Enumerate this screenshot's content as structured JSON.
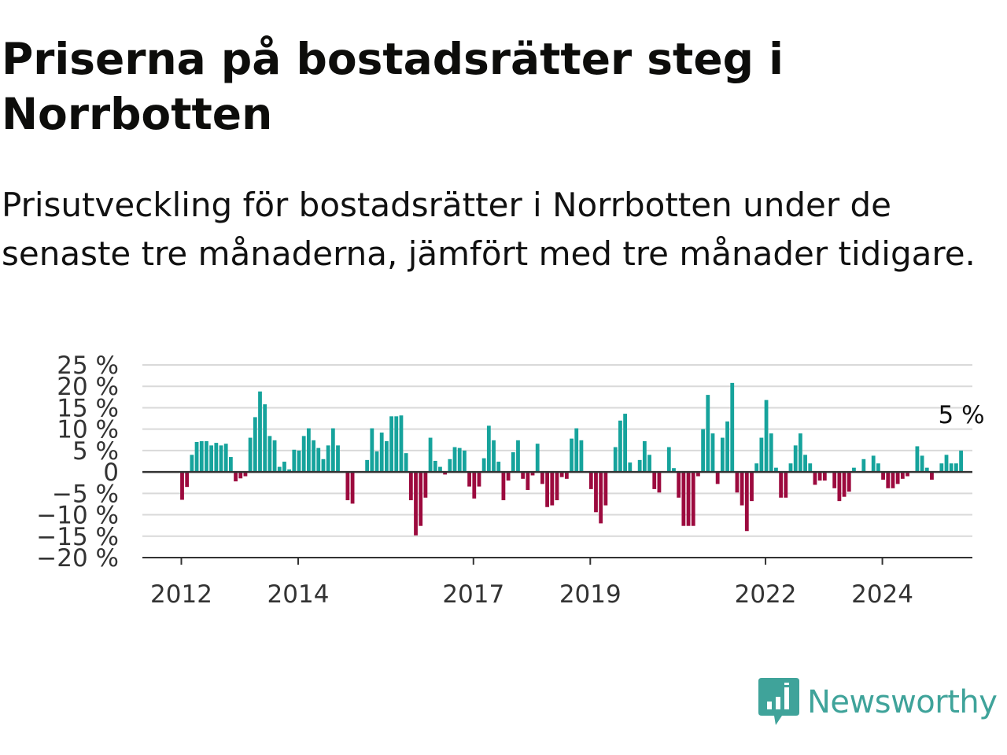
{
  "title": "Priserna på bostadsrätter steg i Norrbotten",
  "subtitle": "Prisutveckling för bostadsrätter i Norrbotten under de senaste tre månaderna, jämfört med tre månader tidigare.",
  "brand": "Newsworthy",
  "colors": {
    "positive": "#16a39c",
    "negative": "#9c0a3e",
    "grid": "#d9d9d9",
    "axis": "#333333",
    "brand": "#3fa39a"
  },
  "chart_data": {
    "type": "bar",
    "title": "Priserna på bostadsrätter steg i Norrbotten",
    "subtitle": "Prisutveckling för bostadsrätter i Norrbotten under de senaste tre månaderna, jämfört med tre månader tidigare.",
    "xlabel": "",
    "ylabel": "",
    "x_start": "2012-01",
    "frequency": "monthly",
    "ylim": [
      -20,
      25
    ],
    "y_ticks": [
      25,
      20,
      15,
      10,
      5,
      0,
      -5,
      -10,
      -15,
      -20
    ],
    "y_tick_labels": [
      "25 %",
      "20 %",
      "15 %",
      "10 %",
      "5 %",
      "0",
      "−5 %",
      "−10 %",
      "−15 %",
      "−20 %"
    ],
    "x_ticks": [
      "2012",
      "2014",
      "2017",
      "2019",
      "2022",
      "2024"
    ],
    "grid": true,
    "last_value_label": "5 %",
    "values": [
      -6.5,
      -3.5,
      4.0,
      7.0,
      7.2,
      7.2,
      6.2,
      6.8,
      6.2,
      6.6,
      3.5,
      -2.2,
      -1.5,
      -1.0,
      8.0,
      12.8,
      18.8,
      15.8,
      8.4,
      7.4,
      1.2,
      2.4,
      0.6,
      5.2,
      5.0,
      8.4,
      10.2,
      7.4,
      5.6,
      3.0,
      6.2,
      10.2,
      6.2,
      0.0,
      -6.6,
      -7.4,
      0.0,
      0.0,
      2.8,
      10.2,
      4.8,
      9.2,
      7.2,
      13.0,
      13.0,
      13.2,
      4.4,
      -6.6,
      -14.8,
      -12.6,
      -6.0,
      8.0,
      2.6,
      1.2,
      -0.6,
      3.0,
      5.8,
      5.6,
      5.0,
      -3.4,
      -6.2,
      -3.4,
      3.2,
      10.8,
      7.4,
      2.4,
      -6.6,
      -2.0,
      4.6,
      7.4,
      -1.6,
      -4.2,
      -0.8,
      6.6,
      -2.8,
      -8.2,
      -7.8,
      -6.6,
      -1.2,
      -1.6,
      7.8,
      10.2,
      7.4,
      0.0,
      -4.0,
      -9.4,
      -12.0,
      -7.8,
      0.0,
      5.8,
      12.0,
      13.6,
      2.2,
      0.0,
      2.8,
      7.2,
      4.0,
      -4.0,
      -4.8,
      0.0,
      5.8,
      0.9,
      -6.0,
      -12.6,
      -12.6,
      -12.6,
      -1.0,
      10.0,
      18.0,
      9.0,
      -2.8,
      8.0,
      11.8,
      20.8,
      -4.8,
      -7.8,
      -13.8,
      -6.8,
      2.0,
      8.0,
      16.8,
      9.0,
      1.0,
      -6.0,
      -6.0,
      2.0,
      6.2,
      9.0,
      4.0,
      2.0,
      -3.0,
      -2.0,
      -2.0,
      0.0,
      -3.8,
      -6.8,
      -5.8,
      -4.6,
      1.0,
      0.0,
      3.0,
      0.0,
      3.8,
      2.0,
      -1.8,
      -3.8,
      -3.8,
      -2.8,
      -1.6,
      -1.0,
      0.0,
      6.0,
      3.8,
      1.0,
      -1.8,
      0.0,
      2.0,
      4.0,
      2.0,
      2.0,
      5.0
    ]
  }
}
